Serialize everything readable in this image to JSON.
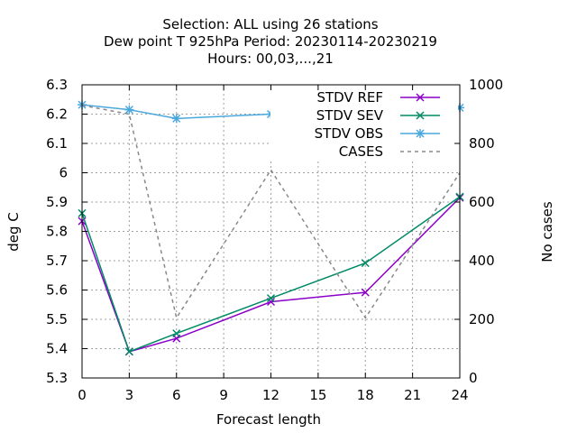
{
  "chart_data": {
    "type": "line",
    "title_lines": [
      "Selection: ALL using    26 stations",
      "Dew point T 925hPa   Period: 20230114-20230219",
      "Hours:  00,03,...,21"
    ],
    "xlabel": "Forecast length",
    "ylabel": "deg C",
    "y2label": "No cases",
    "x_ticks": [
      "0",
      "3",
      "6",
      "9",
      "12",
      "15",
      "18",
      "21",
      "24"
    ],
    "y_ticks": [
      "5.3",
      "5.4",
      "5.5",
      "5.6",
      "5.7",
      "5.8",
      "5.9",
      "6",
      "6.1",
      "6.2",
      "6.3"
    ],
    "y2_ticks": [
      "0",
      "200",
      "400",
      "600",
      "800",
      "1000"
    ],
    "xlim": [
      0,
      24
    ],
    "ylim": [
      5.3,
      6.3
    ],
    "y2lim": [
      0,
      1000
    ],
    "grid": true,
    "legend_position": "top-right",
    "series": [
      {
        "name": "STDV REF",
        "axis": "y",
        "style": "solid",
        "marker": "x-cross",
        "color": "#8b00c8",
        "x": [
          0,
          3,
          6,
          12,
          18,
          24
        ],
        "values": [
          5.835,
          5.39,
          5.435,
          5.56,
          5.592,
          5.915
        ]
      },
      {
        "name": "STDV SEV",
        "axis": "y",
        "style": "solid",
        "marker": "x-cross",
        "color": "#008a66",
        "x": [
          0,
          3,
          6,
          12,
          18,
          24
        ],
        "values": [
          5.862,
          5.39,
          5.452,
          5.572,
          5.692,
          5.918
        ]
      },
      {
        "name": "STDV OBS",
        "axis": "y",
        "style": "solid",
        "marker": "star",
        "color": "#4aa8dd",
        "x": [
          0,
          3,
          6,
          12,
          18,
          24
        ],
        "values": [
          6.232,
          6.215,
          6.185,
          6.2,
          6.195,
          6.222
        ]
      },
      {
        "name": "CASES",
        "axis": "y2",
        "style": "dashed",
        "marker": "none",
        "color": "#888888",
        "x": [
          0,
          3,
          6,
          12,
          18,
          24
        ],
        "values": [
          930,
          900,
          205,
          710,
          205,
          700
        ]
      }
    ]
  }
}
